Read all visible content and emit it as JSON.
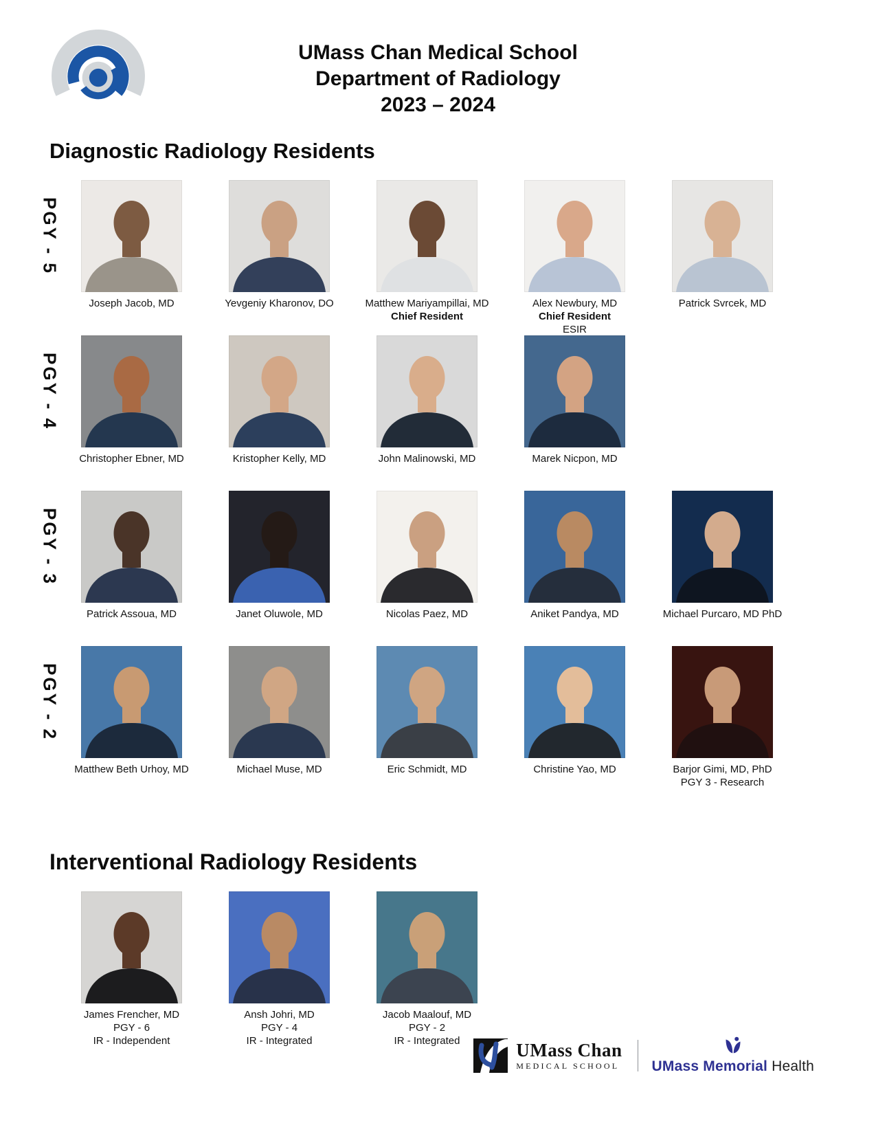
{
  "header": {
    "title_line1": "UMass Chan Medical School",
    "title_line2": "Department of Radiology",
    "title_line3": "2023 – 2024"
  },
  "logo_colors": {
    "gray": "#d2d6d9",
    "blue": "#1b56a5"
  },
  "sections": [
    {
      "heading": "Diagnostic Radiology Residents",
      "rows": [
        {
          "label": "PGY - 5",
          "people": [
            {
              "lines": [
                {
                  "text": "Joseph Jacob, MD"
                }
              ],
              "photo": {
                "bg": "#ece9e6",
                "suit": "#9a948a",
                "head": "#7d5b42"
              }
            },
            {
              "lines": [
                {
                  "text": "Yevgeniy Kharonov, DO"
                }
              ],
              "photo": {
                "bg": "#dedddb",
                "suit": "#33405a",
                "head": "#caa183"
              }
            },
            {
              "lines": [
                {
                  "text": "Matthew Mariyampillai, MD"
                },
                {
                  "text": "Chief Resident",
                  "bold": true
                }
              ],
              "photo": {
                "bg": "#eae9e7",
                "suit": "#dfe1e3",
                "head": "#6b4a35"
              }
            },
            {
              "lines": [
                {
                  "text": "Alex Newbury, MD"
                },
                {
                  "text": "Chief Resident",
                  "bold": true
                },
                {
                  "text": "ESIR"
                }
              ],
              "photo": {
                "bg": "#f1f0ee",
                "suit": "#b8c4d6",
                "head": "#d9a88a"
              }
            },
            {
              "lines": [
                {
                  "text": "Patrick Svrcek, MD"
                }
              ],
              "photo": {
                "bg": "#e7e6e4",
                "suit": "#b9c4d2",
                "head": "#d8b294"
              }
            }
          ]
        },
        {
          "label": "PGY - 4",
          "people": [
            {
              "lines": [
                {
                  "text": "Christopher Ebner, MD"
                }
              ],
              "photo": {
                "bg": "#87898b",
                "suit": "#24374f",
                "head": "#a96a44"
              }
            },
            {
              "lines": [
                {
                  "text": "Kristopher Kelly, MD"
                }
              ],
              "photo": {
                "bg": "#cec8c0",
                "suit": "#2c3f5c",
                "head": "#d3a787"
              }
            },
            {
              "lines": [
                {
                  "text": "John Malinowski, MD"
                }
              ],
              "photo": {
                "bg": "#d9d9d9",
                "suit": "#222c38",
                "head": "#d9ad8b"
              }
            },
            {
              "lines": [
                {
                  "text": "Marek Nicpon, MD"
                }
              ],
              "photo": {
                "bg": "#44688e",
                "suit": "#1d2b3e",
                "head": "#d3a383"
              }
            }
          ]
        },
        {
          "label": "PGY - 3",
          "people": [
            {
              "lines": [
                {
                  "text": "Patrick Assoua, MD"
                }
              ],
              "photo": {
                "bg": "#c9c9c7",
                "suit": "#2c3850",
                "head": "#4a3428"
              }
            },
            {
              "lines": [
                {
                  "text": "Janet Oluwole, MD"
                }
              ],
              "photo": {
                "bg": "#23242c",
                "suit": "#3a62b0",
                "head": "#241a16"
              }
            },
            {
              "lines": [
                {
                  "text": "Nicolas Paez, MD"
                }
              ],
              "photo": {
                "bg": "#f3f1ed",
                "suit": "#2a2a2e",
                "head": "#caa081"
              }
            },
            {
              "lines": [
                {
                  "text": "Aniket Pandya, MD"
                }
              ],
              "photo": {
                "bg": "#39669a",
                "suit": "#252e3c",
                "head": "#b98a62"
              }
            },
            {
              "lines": [
                {
                  "text": "Michael Purcaro, MD PhD"
                }
              ],
              "photo": {
                "bg": "#132c4e",
                "suit": "#0e1520",
                "head": "#d3ab8d"
              }
            }
          ]
        },
        {
          "label": "PGY - 2",
          "people": [
            {
              "lines": [
                {
                  "text": "Matthew Beth Urhoy, MD"
                }
              ],
              "photo": {
                "bg": "#4878a8",
                "suit": "#1c2a3c",
                "head": "#c89a72"
              }
            },
            {
              "lines": [
                {
                  "text": "Michael Muse, MD"
                }
              ],
              "photo": {
                "bg": "#8e8e8c",
                "suit": "#2a3850",
                "head": "#d0a684"
              }
            },
            {
              "lines": [
                {
                  "text": "Eric Schmidt, MD"
                }
              ],
              "photo": {
                "bg": "#5d8ab2",
                "suit": "#3a3f46",
                "head": "#cfa582"
              }
            },
            {
              "lines": [
                {
                  "text": "Christine Yao, MD"
                }
              ],
              "photo": {
                "bg": "#4a81b6",
                "suit": "#22282e",
                "head": "#e3bd9a"
              }
            },
            {
              "lines": [
                {
                  "text": "Barjor Gimi, MD, PhD"
                },
                {
                  "text": "PGY 3 - Research"
                }
              ],
              "photo": {
                "bg": "#381410",
                "suit": "#201010",
                "head": "#c89a78"
              }
            }
          ]
        }
      ]
    },
    {
      "heading": "Interventional Radiology Residents",
      "rows": [
        {
          "label": "",
          "people": [
            {
              "lines": [
                {
                  "text": "James Frencher, MD"
                },
                {
                  "text": "PGY - 6"
                },
                {
                  "text": "IR - Independent"
                }
              ],
              "photo": {
                "bg": "#d6d5d3",
                "suit": "#1c1c1e",
                "head": "#5c3a28"
              }
            },
            {
              "lines": [
                {
                  "text": "Ansh Johri, MD"
                },
                {
                  "text": "PGY - 4"
                },
                {
                  "text": "IR - Integrated"
                }
              ],
              "photo": {
                "bg": "#4a6fc0",
                "suit": "#28324a",
                "head": "#b98a64"
              }
            },
            {
              "lines": [
                {
                  "text": "Jacob Maalouf, MD"
                },
                {
                  "text": "PGY - 2"
                },
                {
                  "text": "IR - Integrated"
                }
              ],
              "photo": {
                "bg": "#47778b",
                "suit": "#3c4450",
                "head": "#c9a078"
              }
            }
          ]
        }
      ]
    }
  ],
  "footer": {
    "chan_line1": "UMass Chan",
    "chan_line2": "MEDICAL SCHOOL",
    "memorial_bold": "UMass Memorial",
    "memorial_regular": " Health",
    "memorial_blue": "#2e3192"
  }
}
